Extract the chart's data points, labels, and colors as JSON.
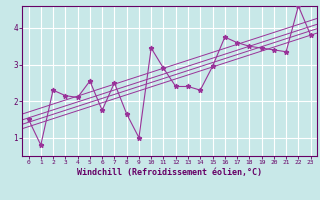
{
  "title": "",
  "xlabel": "Windchill (Refroidissement éolien,°C)",
  "background_color": "#c8e8e8",
  "grid_color": "#ffffff",
  "line_color": "#993399",
  "text_color": "#660066",
  "axis_color": "#660066",
  "x_data": [
    0,
    1,
    2,
    3,
    4,
    5,
    6,
    7,
    8,
    9,
    10,
    11,
    12,
    13,
    14,
    15,
    16,
    17,
    18,
    19,
    20,
    21,
    22,
    23
  ],
  "y_data": [
    1.5,
    0.8,
    2.3,
    2.15,
    2.1,
    2.55,
    1.75,
    2.5,
    1.65,
    1.0,
    3.45,
    2.9,
    2.4,
    2.4,
    2.3,
    2.95,
    3.75,
    3.6,
    3.5,
    3.45,
    3.4,
    3.35,
    4.6,
    3.8
  ],
  "reg_offsets": [
    -0.12,
    0.0,
    0.12,
    0.28
  ],
  "xlim": [
    -0.5,
    23.5
  ],
  "ylim": [
    0.5,
    4.6
  ],
  "yticks": [
    1,
    2,
    3,
    4
  ],
  "xticks": [
    0,
    1,
    2,
    3,
    4,
    5,
    6,
    7,
    8,
    9,
    10,
    11,
    12,
    13,
    14,
    15,
    16,
    17,
    18,
    19,
    20,
    21,
    22,
    23
  ]
}
